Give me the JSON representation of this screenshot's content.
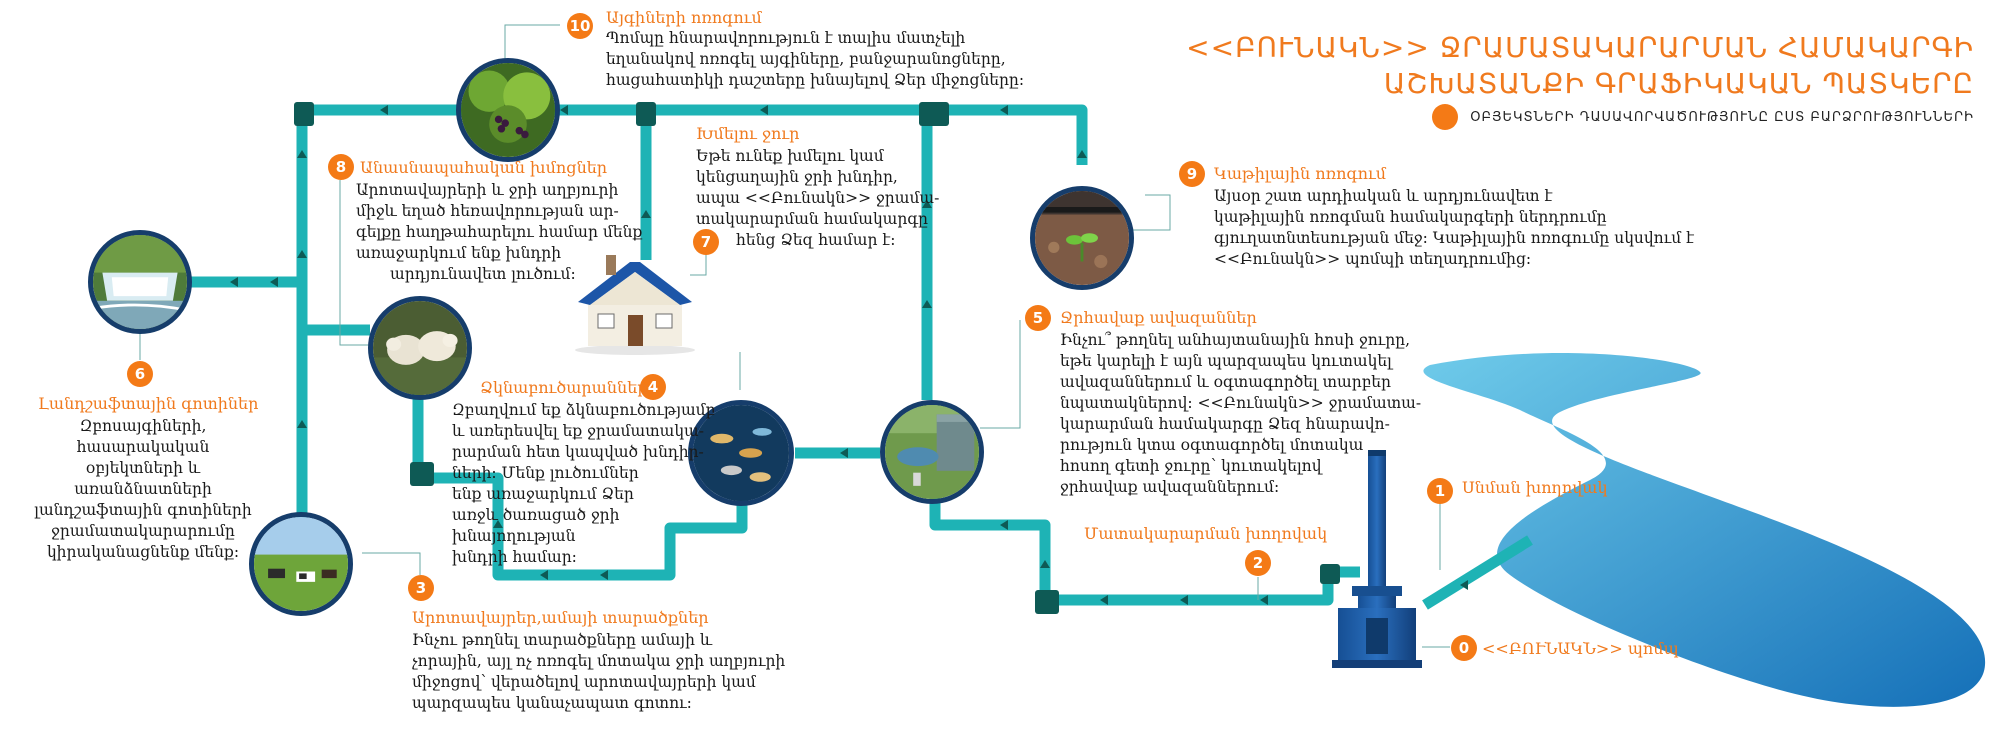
{
  "title": {
    "line1": "<<ԲՈՒՆԱԿՆ>> ՋՐԱՄԱՏԱԿԱՐԱՐՄԱՆ ՀԱՄԱԿԱՐԳԻ",
    "line2": "ԱՇԽԱՏԱՆՔԻ ԳՐԱՖԻԿԱԿԱՆ ՊԱՏԿԵՐԸ"
  },
  "legend": {
    "label": "ՕԲՅԵԿՏՆԵՐԻ ԴԱՍԱՎՈՐՎԱԾՈՒԹՅՈՒՆԸ ԸՍՏ ԲԱՐՁՐՈՒԹՅՈՒՆՆԵՐԻ"
  },
  "colors": {
    "accent": "#f47a16",
    "pipe": "#1eb3b5",
    "pipe_joint": "#0e5a55",
    "photo_border": "#163d6b",
    "river": "#2f9fd8",
    "pump": "#1f5fa8"
  },
  "items": {
    "n0": {
      "number": "0",
      "title": "<<ԲՈՒՆԱԿՆ>> պոմպ"
    },
    "n1": {
      "number": "1",
      "title": "Սնման խողովակ"
    },
    "n2": {
      "number": "2",
      "title": "Մատակարարման խողովակ"
    },
    "n3": {
      "number": "3",
      "title": "Արոտավայրեր,ամայի տարածքներ",
      "lines": [
        "Ինչու թողնել  տարածքները ամայի և",
        "չորային, այլ ոչ ոռոգել մոտակա ջրի աղբյուրի",
        "միջոցով՝ վերածելով արոտավայրերի կամ",
        "պարզապես կանաչապատ գոտու:"
      ]
    },
    "n4": {
      "number": "4",
      "title": "Ձկնաբուծարաններ",
      "lines": [
        "Զբաղվում եք ձկնաբուծությամբ",
        "և առերեսվել եք ջրամատակա-",
        "րարման հետ կապված խնդիր-",
        "ների: Մենք լուծումներ",
        "ենք առաջարկում Ձեր",
        "առջև ծառացած ջրի",
        "խնայողության",
        "խնդրի համար:"
      ]
    },
    "n5": {
      "number": "5",
      "title": "Ջրհավաք ավազաններ",
      "lines": [
        "Ինչու՞ թողնել  անհայտանային հոսի ջուրը,",
        "եթե կարելի է այն պարզապես կուտակել",
        "ավազաններում և օգտագործել տարբեր",
        "նպատակներով: <<Բունակն>> ջրամատա-",
        "կարարման համակարգը Ձեզ հնարավո-",
        "րություն կտա օգտագործել մոտակա",
        "հոսող գետի ջուրը՝ կուտակելով",
        "ջրհավաք ավազաններում:"
      ]
    },
    "n6": {
      "number": "6",
      "title": "Լանդշաֆտային գոտիներ",
      "lines": [
        "Զբոսայգիների, հասարակական",
        "օբյեկտների և առանձնատների",
        "լանդշաֆտային գոտիների",
        "ջրամատակարարումը",
        "կիրականացնենք մենք:"
      ]
    },
    "n7": {
      "number": "7",
      "title": "Խմելու ջուր",
      "lines": [
        "Եթե ունեք խմելու կամ",
        "կենցաղային ջրի խնդիր,",
        "ապա <<Բունակն>> ջրամա-",
        "տակարարման համակարգը",
        "հենց Ձեզ համար է:"
      ]
    },
    "n8": {
      "number": "8",
      "title": "Անասնապահական խմոցներ",
      "lines": [
        "Արոտավայրերի և ջրի աղբյուրի",
        "միջև եղած հեռավորության ար-",
        "գելքը հաղթահարելու համար մենք",
        "առաջարկում ենք խնդրի",
        "արդյունավետ լուծում:"
      ]
    },
    "n9": {
      "number": "9",
      "title": "Կաթիլային ոռոգում",
      "lines": [
        "Այսօր շատ արդիական և արդյունավետ է",
        "կաթիլային ոռոգման համակարգերի ներդրումը",
        "գյուղատնտեսության մեջ: Կաթիլային ոռոգումը սկսվում է",
        "<<Բունակն>> պոմպի տեղադրումից:"
      ]
    },
    "n10": {
      "number": "10",
      "title": "Այգիների ոռոգում",
      "lines": [
        "Պոմպը հնարավորություն է տալիս մատչելի",
        "եղանակով ոռոգել այգիները, բանջարանոցները,",
        "հացահատիկի դաշտերը  խնայելով Ձեր միջոցները:"
      ]
    }
  },
  "photos": [
    "waterfall-photo",
    "vineyard-photo",
    "sheep-photo",
    "cows-photo",
    "fish-photo",
    "tank-photo",
    "seedling-photo",
    "house-image"
  ]
}
